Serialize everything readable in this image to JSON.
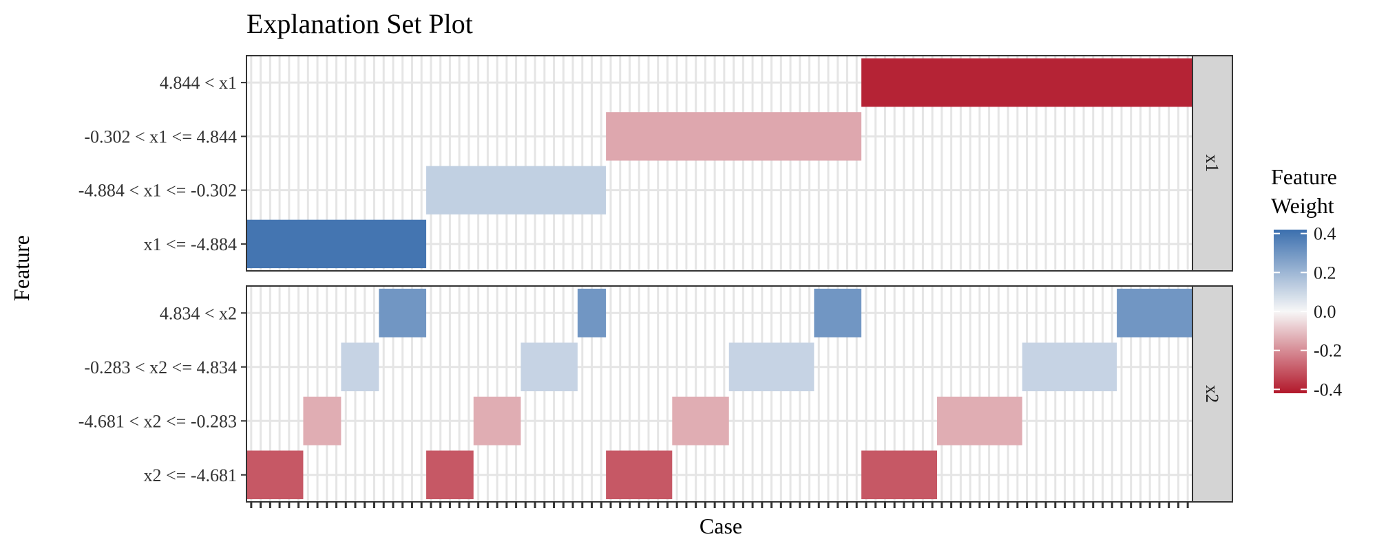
{
  "chart_data": {
    "type": "heatmap",
    "title": "Explanation Set Plot",
    "xlabel": "Case",
    "ylabel": "Feature",
    "n_cases": 100,
    "legend": {
      "title_lines": [
        "Feature",
        "Weight"
      ],
      "ticks": [
        0.4,
        0.2,
        0.0,
        -0.2,
        -0.4
      ],
      "tick_labels": [
        "0.4",
        "0.2",
        "0.0",
        "-0.2",
        "-0.4"
      ],
      "range": [
        -0.42,
        0.42
      ],
      "colors": {
        "high": "#3b6fae",
        "mid": "#f7f7f7",
        "low": "#b2182b"
      }
    },
    "panels": [
      {
        "strip": "x1",
        "rows": [
          {
            "label": "4.844 < x1",
            "segments": [
              {
                "start": 66,
                "end": 100,
                "weight": -0.4
              }
            ]
          },
          {
            "label": "-0.302 < x1 <= 4.844",
            "segments": [
              {
                "start": 39,
                "end": 65,
                "weight": -0.15
              }
            ]
          },
          {
            "label": "-4.884 < x1 <= -0.302",
            "segments": [
              {
                "start": 20,
                "end": 38,
                "weight": 0.12
              }
            ]
          },
          {
            "label": "x1 <= -4.884",
            "segments": [
              {
                "start": 1,
                "end": 19,
                "weight": 0.4
              }
            ]
          }
        ]
      },
      {
        "strip": "x2",
        "rows": [
          {
            "label": "4.834 < x2",
            "segments": [
              {
                "start": 15,
                "end": 19,
                "weight": 0.3
              },
              {
                "start": 36,
                "end": 38,
                "weight": 0.3
              },
              {
                "start": 61,
                "end": 65,
                "weight": 0.3
              },
              {
                "start": 93,
                "end": 100,
                "weight": 0.3
              }
            ]
          },
          {
            "label": "-0.283 < x2 <= 4.834",
            "segments": [
              {
                "start": 11,
                "end": 14,
                "weight": 0.11
              },
              {
                "start": 30,
                "end": 35,
                "weight": 0.11
              },
              {
                "start": 52,
                "end": 60,
                "weight": 0.11
              },
              {
                "start": 83,
                "end": 92,
                "weight": 0.11
              }
            ]
          },
          {
            "label": "-4.681 < x2 <= -0.283",
            "segments": [
              {
                "start": 7,
                "end": 10,
                "weight": -0.14
              },
              {
                "start": 25,
                "end": 29,
                "weight": -0.14
              },
              {
                "start": 46,
                "end": 51,
                "weight": -0.14
              },
              {
                "start": 74,
                "end": 82,
                "weight": -0.14
              }
            ]
          },
          {
            "label": "x2 <= -4.681",
            "segments": [
              {
                "start": 1,
                "end": 6,
                "weight": -0.3
              },
              {
                "start": 20,
                "end": 24,
                "weight": -0.3
              },
              {
                "start": 39,
                "end": 45,
                "weight": -0.3
              },
              {
                "start": 66,
                "end": 73,
                "weight": -0.3
              }
            ]
          }
        ]
      }
    ]
  }
}
